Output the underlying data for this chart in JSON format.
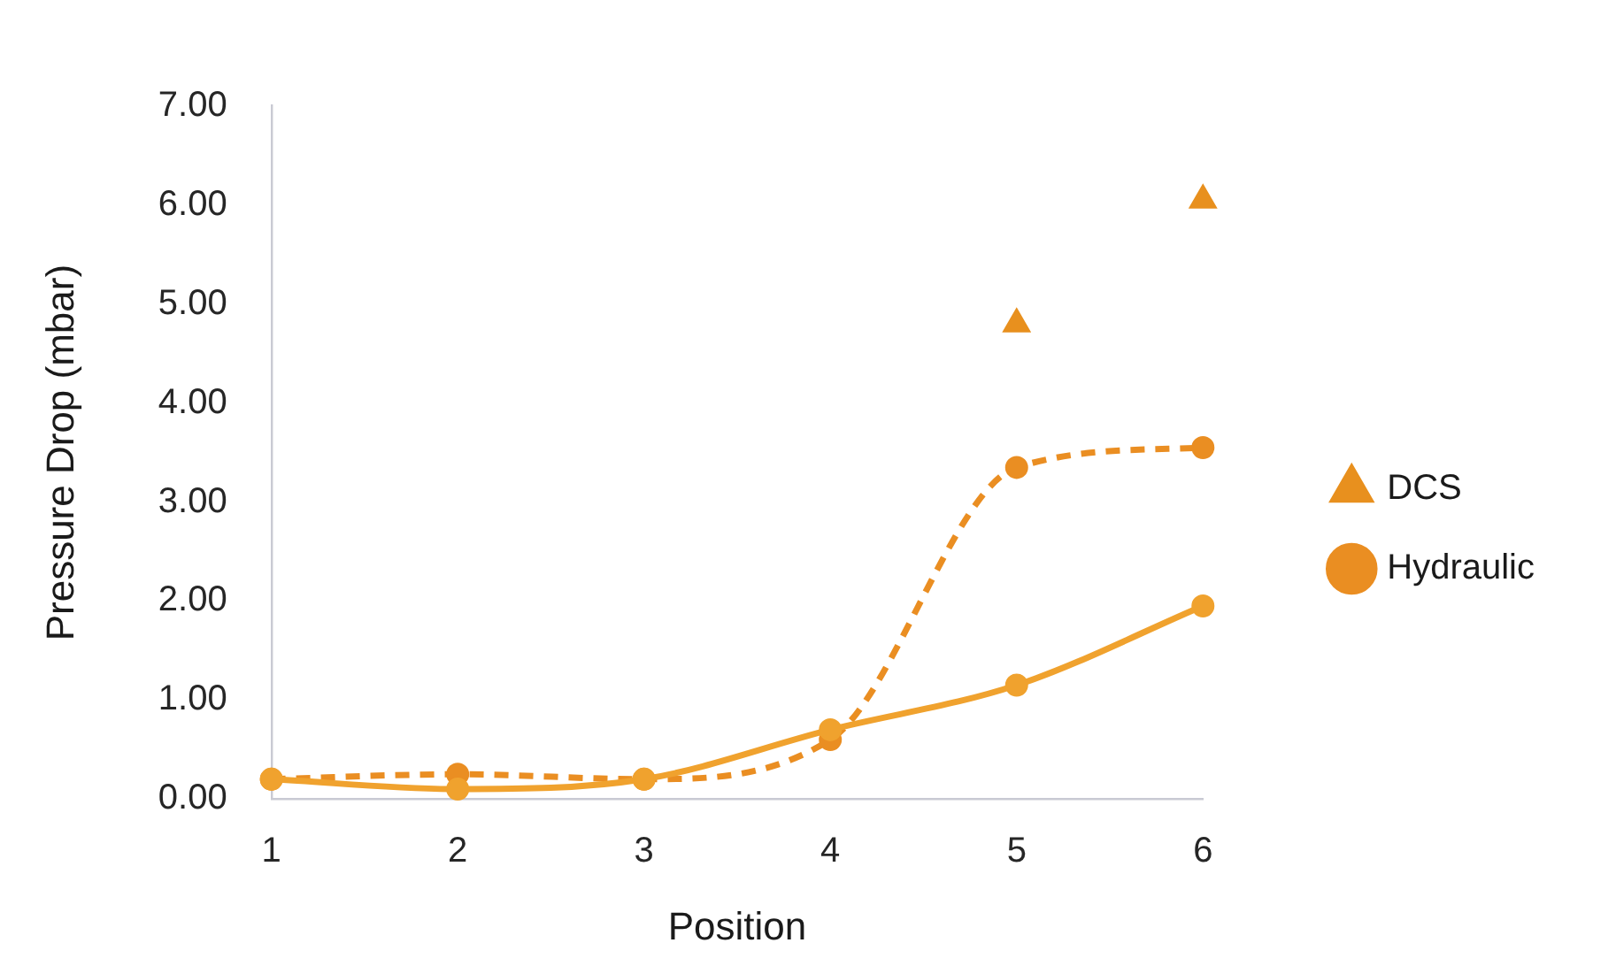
{
  "chart_data": {
    "type": "line",
    "xlabel": "Position",
    "ylabel": "Pressure Drop (mbar)",
    "x": [
      1,
      2,
      3,
      4,
      5,
      6
    ],
    "xlim": [
      1,
      6
    ],
    "xticks": [
      1,
      2,
      3,
      4,
      5,
      6
    ],
    "ylim": [
      0,
      7
    ],
    "yticks": [
      {
        "value": 0,
        "label": "0.00"
      },
      {
        "value": 1,
        "label": "1.00"
      },
      {
        "value": 2,
        "label": "2.00"
      },
      {
        "value": 3,
        "label": "3.00"
      },
      {
        "value": 4,
        "label": "4.00"
      },
      {
        "value": 5,
        "label": "5.00"
      },
      {
        "value": 6,
        "label": "6.00"
      },
      {
        "value": 7,
        "label": "7.00"
      }
    ],
    "legend": "right",
    "marker": "circle",
    "line_style": "solid",
    "series": [
      {
        "name": "DCS",
        "type": "scatter",
        "marker": "triangle",
        "color": "#e8901e",
        "x": [
          5,
          6
        ],
        "values": [
          4.8,
          6.05
        ]
      },
      {
        "color": "#f0a22e",
        "values": [
          0.2,
          0.1,
          0.2,
          0.7,
          1.15,
          1.95
        ]
      },
      {
        "name": "Hydraulic",
        "color": "#ea8e22",
        "line_style": "dashed",
        "values": [
          0.2,
          0.25,
          0.2,
          0.6,
          3.35,
          3.55
        ]
      }
    ]
  }
}
